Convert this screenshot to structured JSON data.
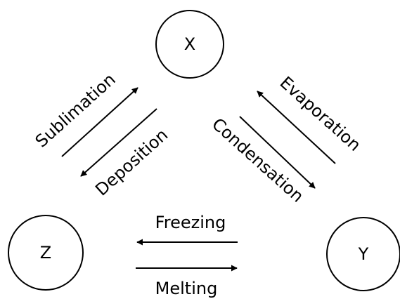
{
  "nodes": [
    {
      "label": "X"
    },
    {
      "label": "Y"
    },
    {
      "label": "Z"
    }
  ],
  "edges": [
    {
      "label": "Sublimation"
    },
    {
      "label": "Deposition"
    },
    {
      "label": "Evaporation"
    },
    {
      "label": "Condensation"
    },
    {
      "label": "Freezing"
    },
    {
      "label": "Melting"
    }
  ]
}
